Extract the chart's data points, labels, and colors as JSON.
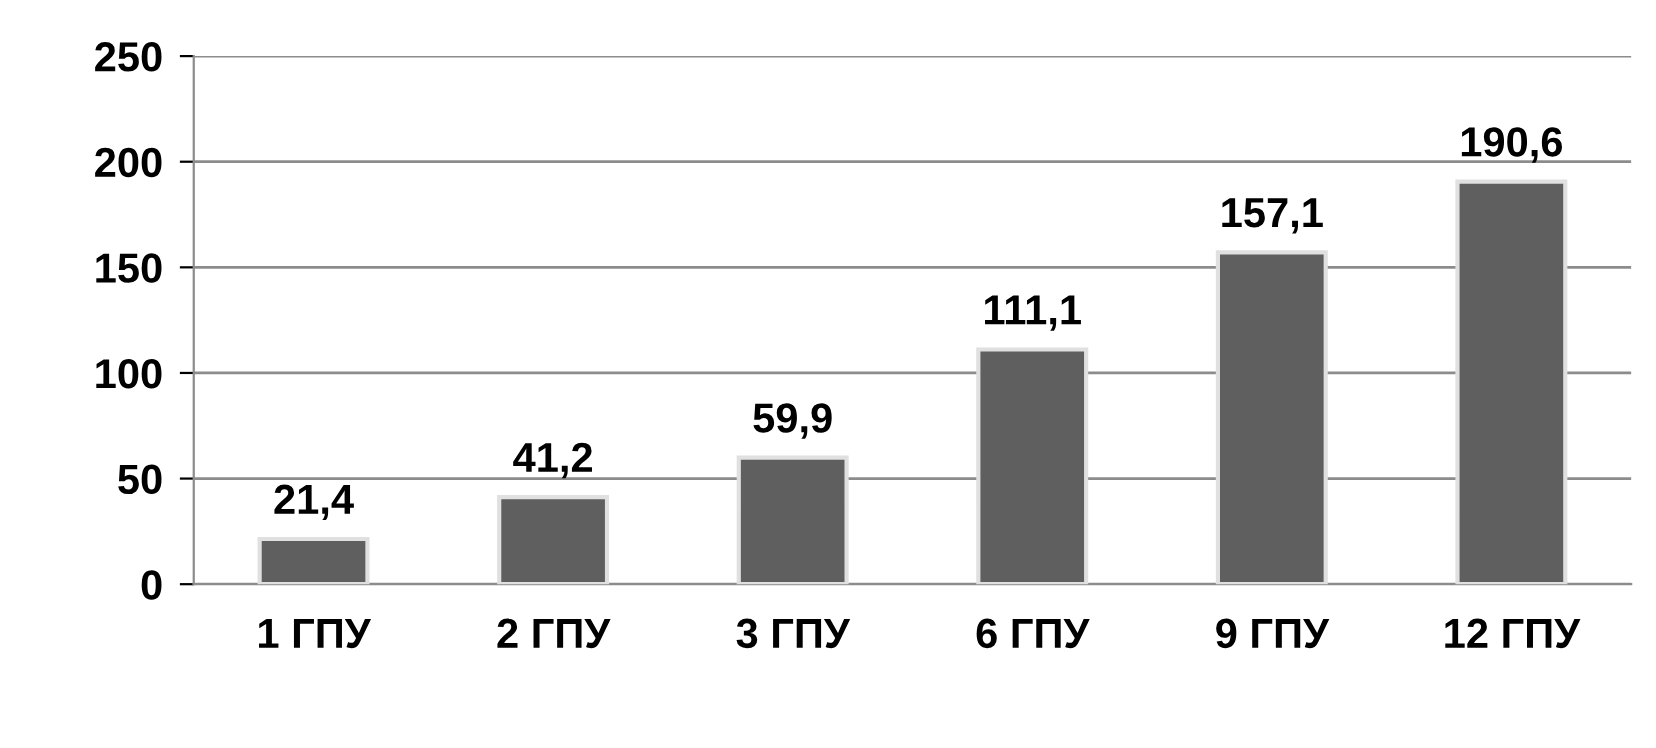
{
  "chart_data": {
    "type": "bar",
    "categories": [
      "1 ГПУ",
      "2 ГПУ",
      "3 ГПУ",
      "6 ГПУ",
      "9 ГПУ",
      "12 ГПУ"
    ],
    "values": [
      21.4,
      41.2,
      59.9,
      111.1,
      157.1,
      190.6
    ],
    "value_labels": [
      "21,4",
      "41,2",
      "59,9",
      "111,1",
      "157,1",
      "190,6"
    ],
    "color": "#5f5f5f",
    "ylim": [
      0,
      250
    ],
    "yticks": [
      0,
      50,
      100,
      150,
      200,
      250
    ],
    "grid": "y",
    "legend": false
  }
}
